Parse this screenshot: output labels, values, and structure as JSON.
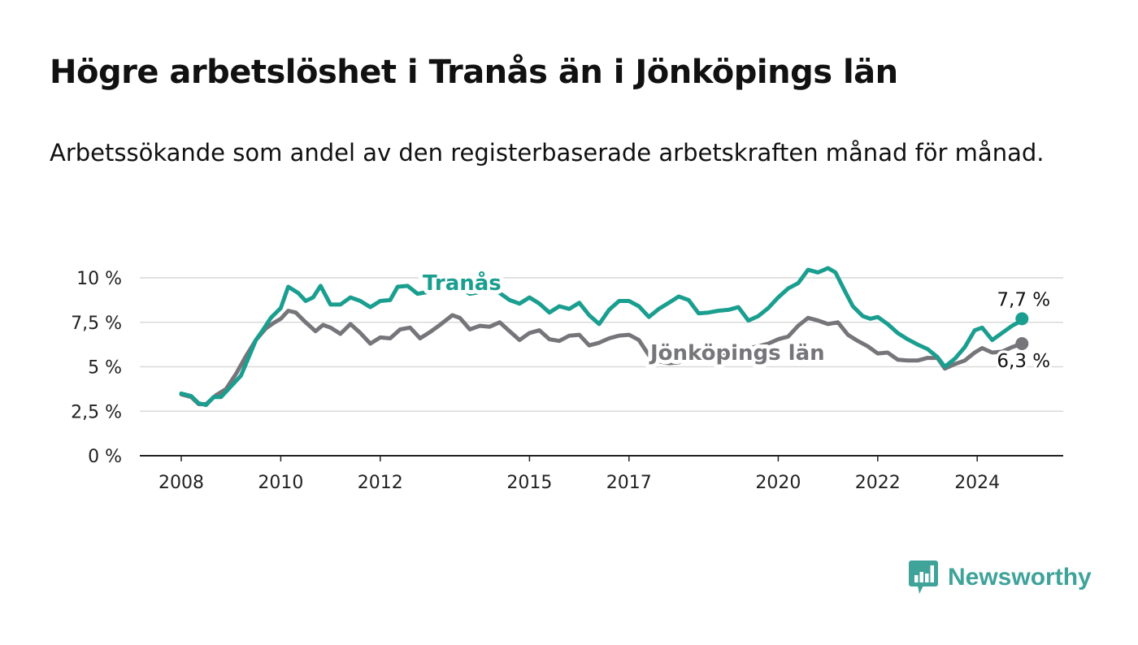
{
  "title": "Högre arbetslöshet i Tranås än i Jönköpings län",
  "subtitle": "Arbetssökande som andel av den registerbaserade arbetskraften månad för månad.",
  "brand": {
    "name": "Newsworthy",
    "icon": "newsworthy-chat-bars-icon",
    "color": "#3fa39a"
  },
  "chart_data": {
    "type": "line",
    "title": "Högre arbetslöshet i Tranås än i Jönköpings län",
    "subtitle": "Arbetssökande som andel av den registerbaserade arbetskraften månad för månad.",
    "xlabel": "",
    "ylabel": "",
    "xlim": [
      2007.2,
      2025.8
    ],
    "ylim": [
      0,
      10
    ],
    "x_ticks": [
      2008,
      2010,
      2012,
      2015,
      2017,
      2020,
      2022,
      2024
    ],
    "x_tick_labels": [
      "2008",
      "2010",
      "2012",
      "2015",
      "2017",
      "2020",
      "2022",
      "2024"
    ],
    "y_ticks": [
      0,
      2.5,
      5,
      7.5,
      10
    ],
    "y_tick_labels": [
      "0 %",
      "2,5 %",
      "5 %",
      "7,5 %",
      "10 %"
    ],
    "grid": "horizontal",
    "legend": "none",
    "series": [
      {
        "name": "Tranås",
        "color": "#1a9e8f",
        "end_label": "7,7 %",
        "end_value": 7.7,
        "points": [
          [
            2008.0,
            3.5
          ],
          [
            2008.2,
            3.35
          ],
          [
            2008.35,
            2.95
          ],
          [
            2008.5,
            2.85
          ],
          [
            2008.65,
            3.3
          ],
          [
            2008.8,
            3.3
          ],
          [
            2009.0,
            3.9
          ],
          [
            2009.2,
            4.5
          ],
          [
            2009.35,
            5.5
          ],
          [
            2009.5,
            6.5
          ],
          [
            2009.65,
            7.1
          ],
          [
            2009.8,
            7.75
          ],
          [
            2010.0,
            8.3
          ],
          [
            2010.15,
            9.5
          ],
          [
            2010.35,
            9.15
          ],
          [
            2010.5,
            8.7
          ],
          [
            2010.65,
            8.9
          ],
          [
            2010.8,
            9.55
          ],
          [
            2011.0,
            8.5
          ],
          [
            2011.2,
            8.5
          ],
          [
            2011.4,
            8.9
          ],
          [
            2011.6,
            8.7
          ],
          [
            2011.8,
            8.35
          ],
          [
            2012.0,
            8.7
          ],
          [
            2012.2,
            8.75
          ],
          [
            2012.35,
            9.5
          ],
          [
            2012.55,
            9.55
          ],
          [
            2012.75,
            9.1
          ],
          [
            2012.95,
            9.2
          ],
          [
            2013.15,
            9.6
          ],
          [
            2013.4,
            9.7
          ],
          [
            2013.6,
            9.4
          ],
          [
            2013.8,
            9.1
          ],
          [
            2014.0,
            9.2
          ],
          [
            2014.2,
            9.45
          ],
          [
            2014.4,
            9.15
          ],
          [
            2014.6,
            8.75
          ],
          [
            2014.8,
            8.55
          ],
          [
            2015.0,
            8.9
          ],
          [
            2015.2,
            8.55
          ],
          [
            2015.4,
            8.05
          ],
          [
            2015.6,
            8.4
          ],
          [
            2015.8,
            8.25
          ],
          [
            2016.0,
            8.6
          ],
          [
            2016.2,
            7.9
          ],
          [
            2016.4,
            7.4
          ],
          [
            2016.6,
            8.2
          ],
          [
            2016.8,
            8.7
          ],
          [
            2017.0,
            8.7
          ],
          [
            2017.2,
            8.4
          ],
          [
            2017.4,
            7.8
          ],
          [
            2017.6,
            8.25
          ],
          [
            2017.8,
            8.6
          ],
          [
            2018.0,
            8.95
          ],
          [
            2018.2,
            8.75
          ],
          [
            2018.4,
            8.0
          ],
          [
            2018.6,
            8.05
          ],
          [
            2018.8,
            8.15
          ],
          [
            2019.0,
            8.2
          ],
          [
            2019.2,
            8.35
          ],
          [
            2019.4,
            7.6
          ],
          [
            2019.6,
            7.85
          ],
          [
            2019.8,
            8.3
          ],
          [
            2020.0,
            8.9
          ],
          [
            2020.2,
            9.4
          ],
          [
            2020.4,
            9.7
          ],
          [
            2020.6,
            10.45
          ],
          [
            2020.8,
            10.3
          ],
          [
            2021.0,
            10.55
          ],
          [
            2021.15,
            10.3
          ],
          [
            2021.35,
            9.2
          ],
          [
            2021.5,
            8.4
          ],
          [
            2021.7,
            7.85
          ],
          [
            2021.85,
            7.7
          ],
          [
            2022.0,
            7.8
          ],
          [
            2022.2,
            7.4
          ],
          [
            2022.4,
            6.9
          ],
          [
            2022.6,
            6.55
          ],
          [
            2022.8,
            6.25
          ],
          [
            2023.0,
            6.0
          ],
          [
            2023.2,
            5.55
          ],
          [
            2023.35,
            5.0
          ],
          [
            2023.55,
            5.45
          ],
          [
            2023.75,
            6.1
          ],
          [
            2023.95,
            7.05
          ],
          [
            2024.1,
            7.2
          ],
          [
            2024.3,
            6.5
          ],
          [
            2024.5,
            6.9
          ],
          [
            2024.7,
            7.3
          ],
          [
            2024.9,
            7.6
          ],
          [
            2024.9,
            7.7
          ]
        ]
      },
      {
        "name": "Jönköpings län",
        "color": "#76757a",
        "end_label": "6,3 %",
        "end_value": 6.3,
        "points": [
          [
            2008.0,
            3.45
          ],
          [
            2008.2,
            3.3
          ],
          [
            2008.35,
            2.9
          ],
          [
            2008.5,
            2.9
          ],
          [
            2008.7,
            3.4
          ],
          [
            2008.9,
            3.75
          ],
          [
            2009.1,
            4.6
          ],
          [
            2009.3,
            5.6
          ],
          [
            2009.5,
            6.5
          ],
          [
            2009.7,
            7.15
          ],
          [
            2009.85,
            7.45
          ],
          [
            2010.0,
            7.7
          ],
          [
            2010.15,
            8.15
          ],
          [
            2010.3,
            8.05
          ],
          [
            2010.5,
            7.5
          ],
          [
            2010.7,
            7.0
          ],
          [
            2010.85,
            7.35
          ],
          [
            2011.0,
            7.2
          ],
          [
            2011.2,
            6.85
          ],
          [
            2011.4,
            7.4
          ],
          [
            2011.6,
            6.9
          ],
          [
            2011.8,
            6.3
          ],
          [
            2012.0,
            6.65
          ],
          [
            2012.2,
            6.6
          ],
          [
            2012.4,
            7.1
          ],
          [
            2012.6,
            7.2
          ],
          [
            2012.8,
            6.6
          ],
          [
            2013.0,
            6.95
          ],
          [
            2013.2,
            7.35
          ],
          [
            2013.45,
            7.9
          ],
          [
            2013.6,
            7.75
          ],
          [
            2013.8,
            7.1
          ],
          [
            2014.0,
            7.3
          ],
          [
            2014.2,
            7.25
          ],
          [
            2014.4,
            7.5
          ],
          [
            2014.6,
            7.0
          ],
          [
            2014.8,
            6.5
          ],
          [
            2015.0,
            6.9
          ],
          [
            2015.2,
            7.05
          ],
          [
            2015.4,
            6.55
          ],
          [
            2015.6,
            6.45
          ],
          [
            2015.8,
            6.75
          ],
          [
            2016.0,
            6.8
          ],
          [
            2016.2,
            6.2
          ],
          [
            2016.4,
            6.35
          ],
          [
            2016.6,
            6.6
          ],
          [
            2016.8,
            6.75
          ],
          [
            2017.0,
            6.8
          ],
          [
            2017.2,
            6.5
          ],
          [
            2017.4,
            5.65
          ],
          [
            2017.6,
            5.3
          ],
          [
            2017.8,
            5.2
          ],
          [
            2018.0,
            5.25
          ],
          [
            2018.2,
            5.4
          ],
          [
            2018.4,
            5.35
          ],
          [
            2018.6,
            5.5
          ],
          [
            2018.8,
            5.6
          ],
          [
            2019.0,
            5.8
          ],
          [
            2019.2,
            5.95
          ],
          [
            2019.4,
            6.05
          ],
          [
            2019.6,
            6.15
          ],
          [
            2019.8,
            6.3
          ],
          [
            2020.0,
            6.55
          ],
          [
            2020.2,
            6.7
          ],
          [
            2020.4,
            7.3
          ],
          [
            2020.6,
            7.75
          ],
          [
            2020.8,
            7.6
          ],
          [
            2021.0,
            7.4
          ],
          [
            2021.2,
            7.5
          ],
          [
            2021.4,
            6.8
          ],
          [
            2021.6,
            6.45
          ],
          [
            2021.8,
            6.15
          ],
          [
            2022.0,
            5.75
          ],
          [
            2022.2,
            5.8
          ],
          [
            2022.4,
            5.4
          ],
          [
            2022.6,
            5.35
          ],
          [
            2022.8,
            5.35
          ],
          [
            2023.0,
            5.5
          ],
          [
            2023.2,
            5.5
          ],
          [
            2023.35,
            4.9
          ],
          [
            2023.55,
            5.15
          ],
          [
            2023.75,
            5.35
          ],
          [
            2023.95,
            5.8
          ],
          [
            2024.1,
            6.05
          ],
          [
            2024.3,
            5.8
          ],
          [
            2024.5,
            5.85
          ],
          [
            2024.7,
            6.1
          ],
          [
            2024.9,
            6.3
          ]
        ]
      }
    ]
  }
}
